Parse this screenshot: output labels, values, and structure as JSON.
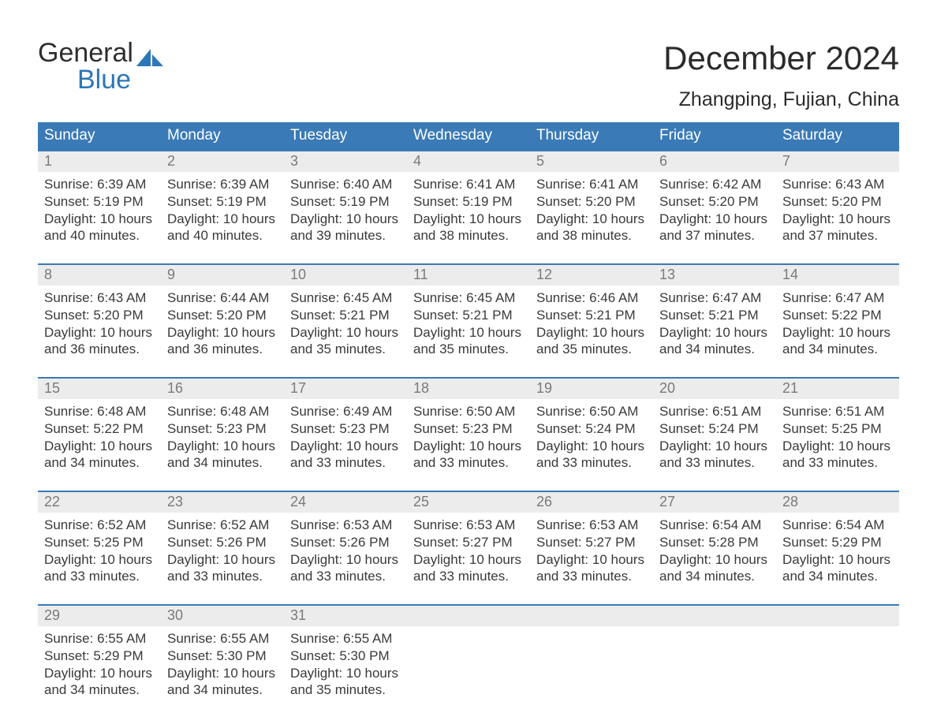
{
  "brand": {
    "part1": "General",
    "part2": "Blue",
    "accent_color": "#2b77b8"
  },
  "title": "December 2024",
  "location": "Zhangping, Fujian, China",
  "dayNames": [
    "Sunday",
    "Monday",
    "Tuesday",
    "Wednesday",
    "Thursday",
    "Friday",
    "Saturday"
  ],
  "colors": {
    "header_bg": "#3a7ab6",
    "header_text": "#ffffff",
    "daynum_bg": "#ececec",
    "daynum_text": "#7a7a7a",
    "week_border": "#3a7ab6",
    "body_text": "#3a3a3a"
  },
  "weeks": [
    [
      {
        "n": "1",
        "sunrise": "6:39 AM",
        "sunset": "5:19 PM",
        "daylight": "10 hours and 40 minutes."
      },
      {
        "n": "2",
        "sunrise": "6:39 AM",
        "sunset": "5:19 PM",
        "daylight": "10 hours and 40 minutes."
      },
      {
        "n": "3",
        "sunrise": "6:40 AM",
        "sunset": "5:19 PM",
        "daylight": "10 hours and 39 minutes."
      },
      {
        "n": "4",
        "sunrise": "6:41 AM",
        "sunset": "5:19 PM",
        "daylight": "10 hours and 38 minutes."
      },
      {
        "n": "5",
        "sunrise": "6:41 AM",
        "sunset": "5:20 PM",
        "daylight": "10 hours and 38 minutes."
      },
      {
        "n": "6",
        "sunrise": "6:42 AM",
        "sunset": "5:20 PM",
        "daylight": "10 hours and 37 minutes."
      },
      {
        "n": "7",
        "sunrise": "6:43 AM",
        "sunset": "5:20 PM",
        "daylight": "10 hours and 37 minutes."
      }
    ],
    [
      {
        "n": "8",
        "sunrise": "6:43 AM",
        "sunset": "5:20 PM",
        "daylight": "10 hours and 36 minutes."
      },
      {
        "n": "9",
        "sunrise": "6:44 AM",
        "sunset": "5:20 PM",
        "daylight": "10 hours and 36 minutes."
      },
      {
        "n": "10",
        "sunrise": "6:45 AM",
        "sunset": "5:21 PM",
        "daylight": "10 hours and 35 minutes."
      },
      {
        "n": "11",
        "sunrise": "6:45 AM",
        "sunset": "5:21 PM",
        "daylight": "10 hours and 35 minutes."
      },
      {
        "n": "12",
        "sunrise": "6:46 AM",
        "sunset": "5:21 PM",
        "daylight": "10 hours and 35 minutes."
      },
      {
        "n": "13",
        "sunrise": "6:47 AM",
        "sunset": "5:21 PM",
        "daylight": "10 hours and 34 minutes."
      },
      {
        "n": "14",
        "sunrise": "6:47 AM",
        "sunset": "5:22 PM",
        "daylight": "10 hours and 34 minutes."
      }
    ],
    [
      {
        "n": "15",
        "sunrise": "6:48 AM",
        "sunset": "5:22 PM",
        "daylight": "10 hours and 34 minutes."
      },
      {
        "n": "16",
        "sunrise": "6:48 AM",
        "sunset": "5:23 PM",
        "daylight": "10 hours and 34 minutes."
      },
      {
        "n": "17",
        "sunrise": "6:49 AM",
        "sunset": "5:23 PM",
        "daylight": "10 hours and 33 minutes."
      },
      {
        "n": "18",
        "sunrise": "6:50 AM",
        "sunset": "5:23 PM",
        "daylight": "10 hours and 33 minutes."
      },
      {
        "n": "19",
        "sunrise": "6:50 AM",
        "sunset": "5:24 PM",
        "daylight": "10 hours and 33 minutes."
      },
      {
        "n": "20",
        "sunrise": "6:51 AM",
        "sunset": "5:24 PM",
        "daylight": "10 hours and 33 minutes."
      },
      {
        "n": "21",
        "sunrise": "6:51 AM",
        "sunset": "5:25 PM",
        "daylight": "10 hours and 33 minutes."
      }
    ],
    [
      {
        "n": "22",
        "sunrise": "6:52 AM",
        "sunset": "5:25 PM",
        "daylight": "10 hours and 33 minutes."
      },
      {
        "n": "23",
        "sunrise": "6:52 AM",
        "sunset": "5:26 PM",
        "daylight": "10 hours and 33 minutes."
      },
      {
        "n": "24",
        "sunrise": "6:53 AM",
        "sunset": "5:26 PM",
        "daylight": "10 hours and 33 minutes."
      },
      {
        "n": "25",
        "sunrise": "6:53 AM",
        "sunset": "5:27 PM",
        "daylight": "10 hours and 33 minutes."
      },
      {
        "n": "26",
        "sunrise": "6:53 AM",
        "sunset": "5:27 PM",
        "daylight": "10 hours and 33 minutes."
      },
      {
        "n": "27",
        "sunrise": "6:54 AM",
        "sunset": "5:28 PM",
        "daylight": "10 hours and 34 minutes."
      },
      {
        "n": "28",
        "sunrise": "6:54 AM",
        "sunset": "5:29 PM",
        "daylight": "10 hours and 34 minutes."
      }
    ],
    [
      {
        "n": "29",
        "sunrise": "6:55 AM",
        "sunset": "5:29 PM",
        "daylight": "10 hours and 34 minutes."
      },
      {
        "n": "30",
        "sunrise": "6:55 AM",
        "sunset": "5:30 PM",
        "daylight": "10 hours and 34 minutes."
      },
      {
        "n": "31",
        "sunrise": "6:55 AM",
        "sunset": "5:30 PM",
        "daylight": "10 hours and 35 minutes."
      },
      null,
      null,
      null,
      null
    ]
  ],
  "labels": {
    "sunrise": "Sunrise: ",
    "sunset": "Sunset: ",
    "daylight": "Daylight: "
  }
}
